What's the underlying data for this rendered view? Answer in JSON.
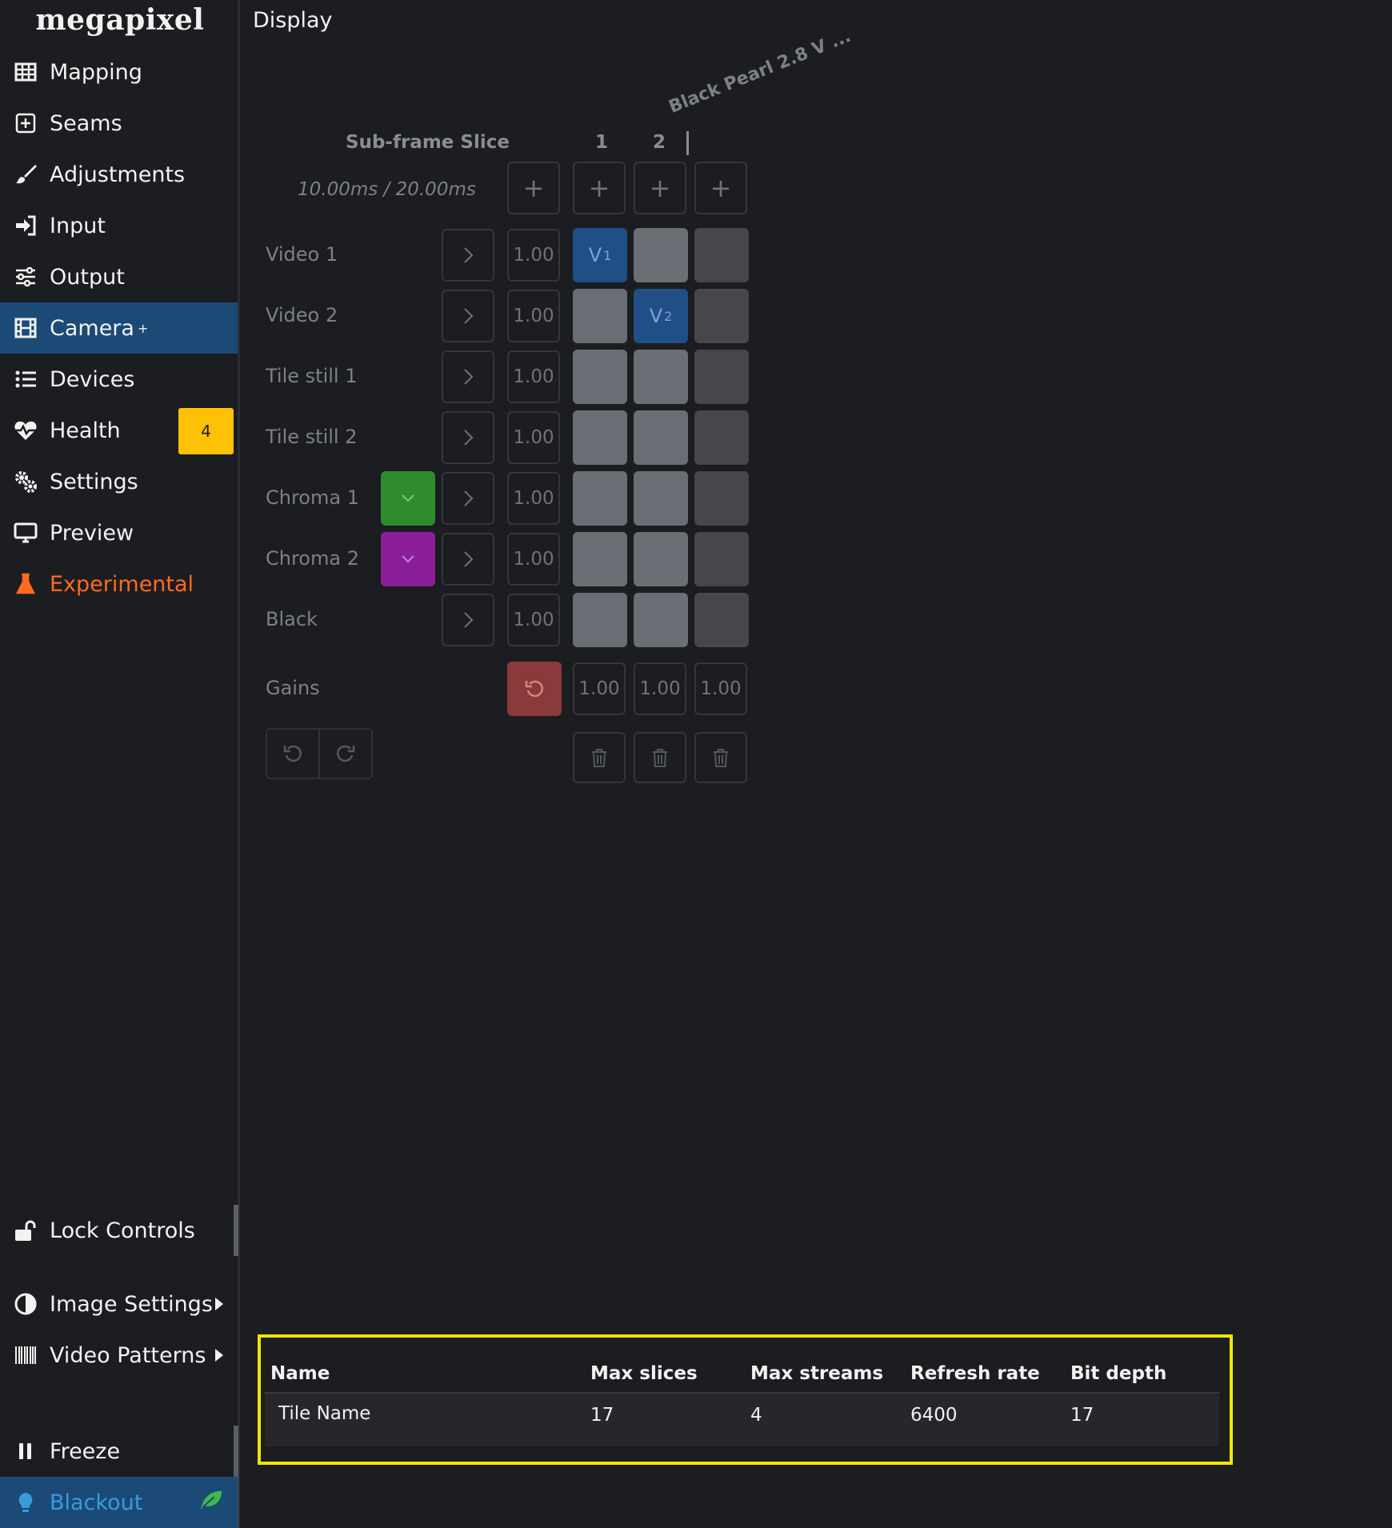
{
  "brand": {
    "logo_text": "megapixel"
  },
  "sidebar": {
    "items": [
      {
        "label": "Mapping",
        "icon": "grid-table-icon"
      },
      {
        "label": "Seams",
        "icon": "plus-square-icon"
      },
      {
        "label": "Adjustments",
        "icon": "brush-icon"
      },
      {
        "label": "Input",
        "icon": "sign-in-icon"
      },
      {
        "label": "Output",
        "icon": "sliders-icon"
      },
      {
        "label": "Camera",
        "icon": "film-icon",
        "superscript": "+",
        "active": true
      },
      {
        "label": "Devices",
        "icon": "list-icon"
      },
      {
        "label": "Health",
        "icon": "heartbeat-icon",
        "badge": "4"
      },
      {
        "label": "Settings",
        "icon": "gears-icon"
      },
      {
        "label": "Preview",
        "icon": "monitor-icon"
      },
      {
        "label": "Experimental",
        "icon": "flask-icon",
        "color": "#ff6a1f"
      }
    ],
    "bottom": {
      "lock_controls": "Lock Controls",
      "image_settings": "Image Settings",
      "video_patterns": "Video Patterns",
      "freeze": "Freeze",
      "blackout": "Blackout"
    }
  },
  "page": {
    "title": "Display"
  },
  "grid": {
    "device_header": "Black Pearl 2.8 V ...",
    "subframe_label": "Sub-frame Slice",
    "timing": "10.00ms / 20.00ms",
    "columns": [
      "1",
      "2"
    ],
    "rows": [
      {
        "label": "Video 1",
        "gain": "1.00",
        "cells": [
          "V1",
          "",
          ""
        ]
      },
      {
        "label": "Video 2",
        "gain": "1.00",
        "cells": [
          "",
          "V2",
          ""
        ]
      },
      {
        "label": "Tile still 1",
        "gain": "1.00"
      },
      {
        "label": "Tile still 2",
        "gain": "1.00"
      },
      {
        "label": "Chroma 1",
        "gain": "1.00",
        "chroma_color": "#2e8b2e"
      },
      {
        "label": "Chroma 2",
        "gain": "1.00",
        "chroma_color": "#8b1f9a"
      },
      {
        "label": "Black",
        "gain": "1.00"
      }
    ],
    "gains_label": "Gains",
    "gains": [
      "1.00",
      "1.00",
      "1.00"
    ]
  },
  "tile_table": {
    "headers": [
      "Name",
      "Max slices",
      "Max streams",
      "Refresh rate",
      "Bit depth"
    ],
    "rows": [
      {
        "name": "Tile Name",
        "max_slices": "17",
        "max_streams": "4",
        "refresh_rate": "6400",
        "bit_depth": "17"
      }
    ]
  },
  "colors": {
    "accent": "#1b4a76",
    "badge": "#ffc107",
    "highlight": "#f2e600",
    "experimental": "#ff6a1f",
    "blackout": "#3a9bdc"
  }
}
